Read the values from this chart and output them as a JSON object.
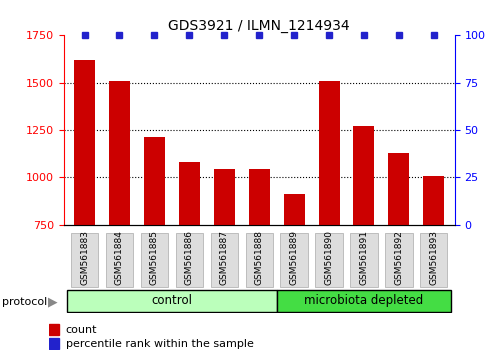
{
  "title": "GDS3921 / ILMN_1214934",
  "samples": [
    "GSM561883",
    "GSM561884",
    "GSM561885",
    "GSM561886",
    "GSM561887",
    "GSM561888",
    "GSM561889",
    "GSM561890",
    "GSM561891",
    "GSM561892",
    "GSM561893"
  ],
  "counts": [
    1620,
    1510,
    1215,
    1080,
    1045,
    1045,
    910,
    1510,
    1270,
    1130,
    1005
  ],
  "ylim_left": [
    750,
    1750
  ],
  "ylim_right": [
    0,
    100
  ],
  "yticks_left": [
    750,
    1000,
    1250,
    1500,
    1750
  ],
  "yticks_right": [
    0,
    25,
    50,
    75,
    100
  ],
  "bar_color": "#cc0000",
  "dot_color": "#2222cc",
  "control_color": "#bbffbb",
  "microbiota_color": "#44dd44",
  "tick_bg_color": "#dddddd",
  "control_samples": 6,
  "microbiota_samples": 5,
  "control_label": "control",
  "microbiota_label": "microbiota depleted",
  "protocol_label": "protocol",
  "legend_count": "count",
  "legend_percentile": "percentile rank within the sample",
  "plot_bg": "#ffffff"
}
